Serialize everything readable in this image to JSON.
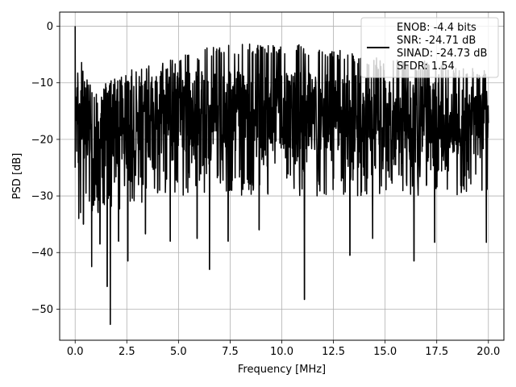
{
  "chart_data": {
    "type": "line",
    "title": "",
    "xlabel": "Frequency [MHz]",
    "ylabel": "PSD [dB]",
    "xlim": [
      -0.75,
      20.75
    ],
    "ylim": [
      -55.5,
      2.5
    ],
    "grid": true,
    "x_ticks": [
      0.0,
      2.5,
      5.0,
      7.5,
      10.0,
      12.5,
      15.0,
      17.5,
      20.0
    ],
    "x_tick_labels": [
      "0.0",
      "2.5",
      "5.0",
      "7.5",
      "10.0",
      "12.5",
      "15.0",
      "17.5",
      "20.0"
    ],
    "y_ticks": [
      0,
      -10,
      -20,
      -30,
      -40,
      -50
    ],
    "y_tick_labels": [
      "0",
      "−10",
      "−20",
      "−30",
      "−40",
      "−50"
    ],
    "legend_position": "top-right",
    "series": [
      {
        "color": "#000000",
        "x_range": [
          0.0,
          20.0
        ],
        "peak": {
          "x": 0.0,
          "y": 0.0
        },
        "upper_envelope": [
          [
            0.0,
            0.0
          ],
          [
            0.5,
            -9
          ],
          [
            1.0,
            -11
          ],
          [
            1.5,
            -10
          ],
          [
            2.0,
            -9
          ],
          [
            2.5,
            -8
          ],
          [
            3.0,
            -7
          ],
          [
            4.0,
            -7
          ],
          [
            5.0,
            -5
          ],
          [
            6.0,
            -4
          ],
          [
            7.0,
            -3
          ],
          [
            8.0,
            -3
          ],
          [
            9.0,
            -3
          ],
          [
            10.0,
            -3
          ],
          [
            11.0,
            -3
          ],
          [
            12.0,
            -4
          ],
          [
            13.0,
            -4
          ],
          [
            14.0,
            -5
          ],
          [
            15.0,
            -6
          ],
          [
            16.0,
            -6
          ],
          [
            17.0,
            -6
          ],
          [
            18.0,
            -7
          ],
          [
            19.0,
            -7
          ],
          [
            20.0,
            -8
          ]
        ],
        "dense_band": [
          [
            0.5,
            -11,
            -26
          ],
          [
            2.5,
            -10,
            -24
          ],
          [
            5.0,
            -8,
            -22
          ],
          [
            10.0,
            -8,
            -22
          ],
          [
            15.0,
            -9,
            -22
          ],
          [
            20.0,
            -11,
            -22
          ]
        ],
        "deep_notches": [
          [
            0.4,
            -35
          ],
          [
            0.8,
            -42.5
          ],
          [
            1.2,
            -38.5
          ],
          [
            1.55,
            -46
          ],
          [
            1.7,
            -52.7
          ],
          [
            2.1,
            -38
          ],
          [
            2.55,
            -41.5
          ],
          [
            3.4,
            -36.7
          ],
          [
            4.6,
            -38
          ],
          [
            5.9,
            -37.5
          ],
          [
            6.5,
            -43
          ],
          [
            7.4,
            -38
          ],
          [
            8.9,
            -36
          ],
          [
            11.1,
            -48.3
          ],
          [
            13.3,
            -40.5
          ],
          [
            14.4,
            -37.5
          ],
          [
            16.4,
            -41.5
          ],
          [
            17.4,
            -38.2
          ],
          [
            19.9,
            -38.2
          ]
        ]
      }
    ],
    "legend": {
      "lines": [
        "ENOB: -4.4 bits",
        "SNR: -24.71 dB",
        "SINAD: -24.73 dB",
        "SFDR: 1.54"
      ]
    }
  }
}
